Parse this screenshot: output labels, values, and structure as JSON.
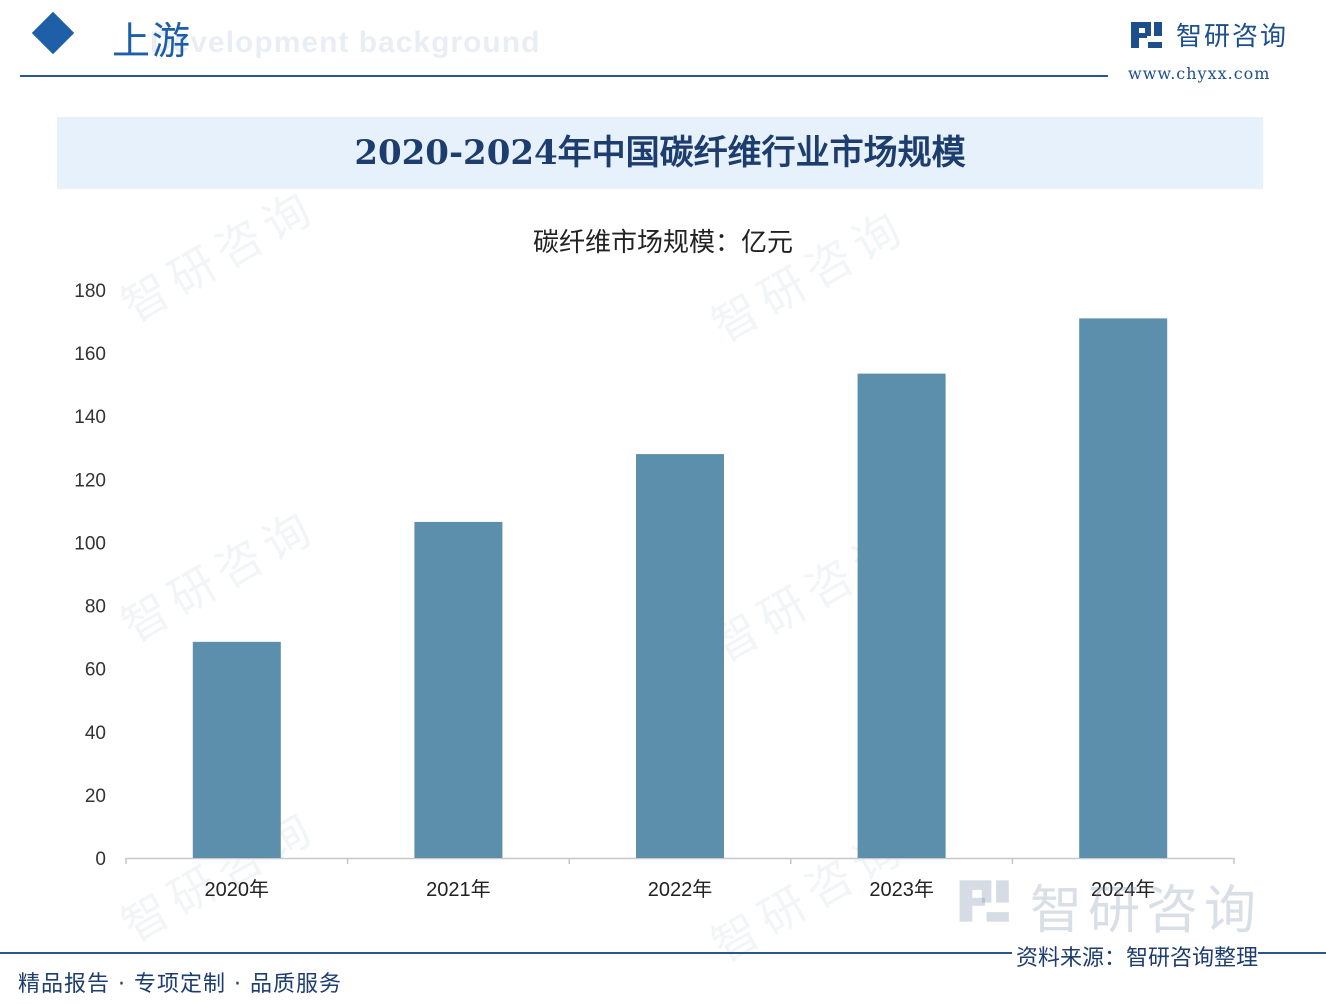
{
  "header": {
    "section_title": "上游",
    "section_subtitle": "Development background",
    "brand_name": "智研咨询",
    "brand_url": "www.chyxx.com"
  },
  "watermark_text": "智研咨询",
  "chart_data": {
    "type": "bar",
    "title": "2020-2024年中国碳纤维行业市场规模",
    "subtitle": "碳纤维市场规模：亿元",
    "categories": [
      "2020年",
      "2021年",
      "2022年",
      "2023年",
      "2024年"
    ],
    "values": [
      68.5,
      106.5,
      128,
      153.5,
      171
    ],
    "ylim": [
      0,
      180
    ],
    "yticks": [
      0,
      20,
      40,
      60,
      80,
      100,
      120,
      140,
      160,
      180
    ],
    "xlabel": "",
    "ylabel": "",
    "grid": false,
    "bar_color": "#5b8fab"
  },
  "footer": {
    "left_text": "精品报告 · 专项定制 · 品质服务",
    "source": "资料来源：智研咨询整理",
    "logo_text": "智研咨询"
  }
}
